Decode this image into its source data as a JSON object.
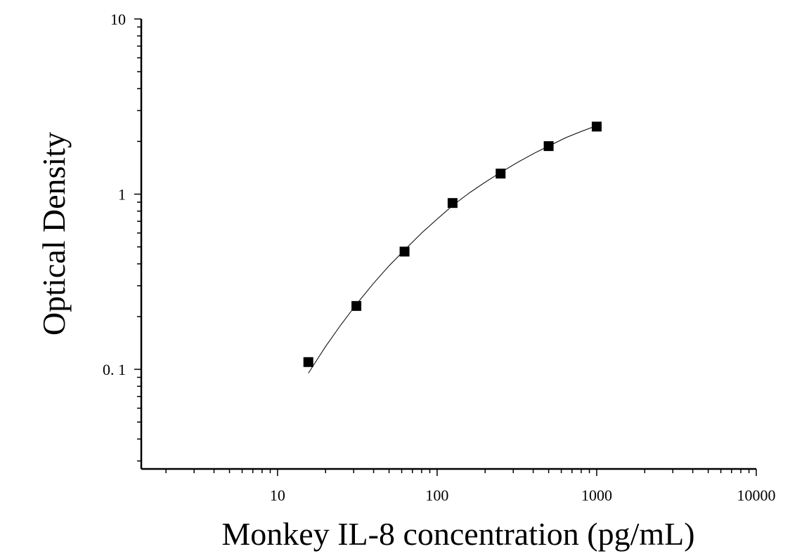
{
  "chart_data": {
    "type": "scatter",
    "title": "",
    "xlabel": "Monkey IL-8 concentration (pg/mL)",
    "ylabel": "Optical Density",
    "x_scale": "log",
    "y_scale": "log",
    "xlim": [
      1.4,
      10000
    ],
    "ylim": [
      0.027,
      10
    ],
    "x_ticks": [
      {
        "value": 10,
        "label": "10"
      },
      {
        "value": 100,
        "label": "100"
      },
      {
        "value": 1000,
        "label": "1000"
      },
      {
        "value": 10000,
        "label": "10000"
      }
    ],
    "y_ticks": [
      {
        "value": 0.1,
        "label": "0. 1"
      },
      {
        "value": 1,
        "label": "1"
      },
      {
        "value": 10,
        "label": "10"
      }
    ],
    "grid": false,
    "series": [
      {
        "marker": "square",
        "color": "#000000",
        "x": [
          15.6,
          31.2,
          62.5,
          125,
          250,
          500,
          1000
        ],
        "y": [
          0.11,
          0.23,
          0.47,
          0.89,
          1.31,
          1.88,
          2.43
        ]
      }
    ],
    "fit_curve": {
      "color": "#000000",
      "x": [
        15.6,
        20,
        25,
        31.2,
        40,
        50,
        62.5,
        80,
        100,
        125,
        160,
        200,
        250,
        320,
        400,
        500,
        640,
        800,
        1000
      ],
      "y": [
        0.095,
        0.135,
        0.18,
        0.235,
        0.31,
        0.39,
        0.48,
        0.6,
        0.72,
        0.86,
        1.02,
        1.17,
        1.33,
        1.52,
        1.7,
        1.88,
        2.1,
        2.28,
        2.46
      ]
    }
  }
}
